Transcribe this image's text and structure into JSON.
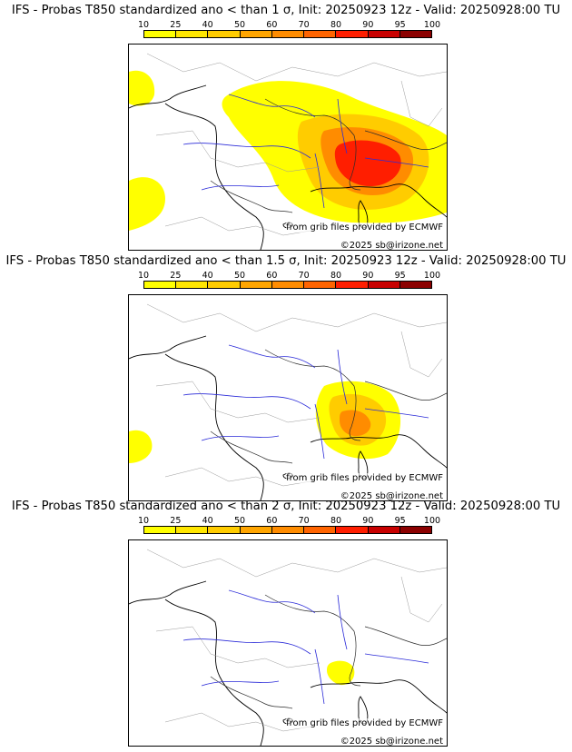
{
  "legend": {
    "ticks": [
      "10",
      "25",
      "40",
      "50",
      "60",
      "70",
      "80",
      "90",
      "95",
      "100"
    ],
    "colors": [
      "#ffff00",
      "#ffe600",
      "#ffcc00",
      "#ffa500",
      "#ff8c00",
      "#ff6400",
      "#ff1e00",
      "#c80000",
      "#8b0000"
    ]
  },
  "panels": [
    {
      "title": "IFS - Probas T850  standardized ano < than 1 σ, Init: 20250923 12z - Valid: 20250928:00 TU",
      "credit": "from grib files provided by ECMWF",
      "copyright": "©2025 sb@irizone.net"
    },
    {
      "title": "IFS - Probas T850  standardized ano < than 1.5 σ, Init: 20250923 12z - Valid: 20250928:00 TU",
      "credit": "from grib files provided by ECMWF",
      "copyright": "©2025 sb@irizone.net"
    },
    {
      "title": "IFS - Probas T850  standardized ano < than 2 σ, Init: 20250923 12z - Valid: 20250928:00 TU",
      "credit": "from grib files provided by ECMWF",
      "copyright": "©2025 sb@irizone.net"
    }
  ]
}
